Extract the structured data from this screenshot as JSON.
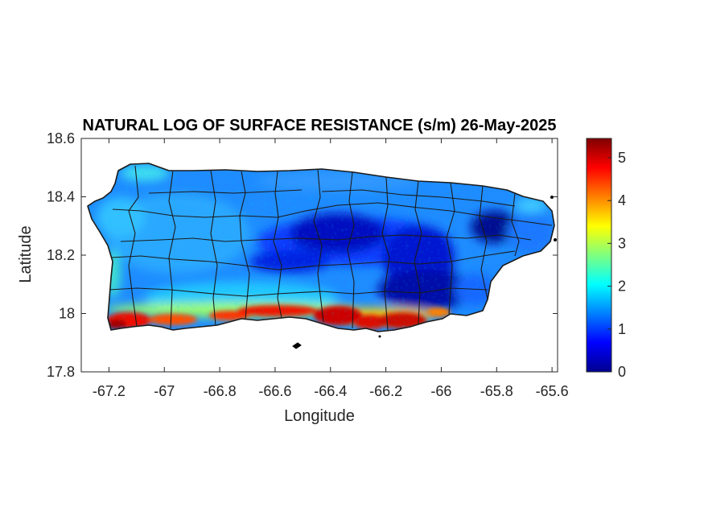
{
  "title": "NATURAL LOG OF SURFACE RESISTANCE (s/m) 26-May-2025",
  "map": {
    "xlabel": "Longitude",
    "ylabel": "Latitude",
    "xlim": [
      -67.3,
      -65.58
    ],
    "ylim": [
      17.8,
      18.6
    ],
    "xticks": [
      "-67.2",
      "-67",
      "-66.8",
      "-66.6",
      "-66.4",
      "-66.2",
      "-66",
      "-65.8",
      "-65.6"
    ],
    "yticks": [
      "18.6",
      "18.4",
      "18.2",
      "18",
      "17.8"
    ]
  },
  "colorbar": {
    "min": 0,
    "max": 5.45,
    "ticks": [
      "5",
      "4",
      "3",
      "2",
      "1",
      "0"
    ],
    "colormap": "jet"
  }
}
